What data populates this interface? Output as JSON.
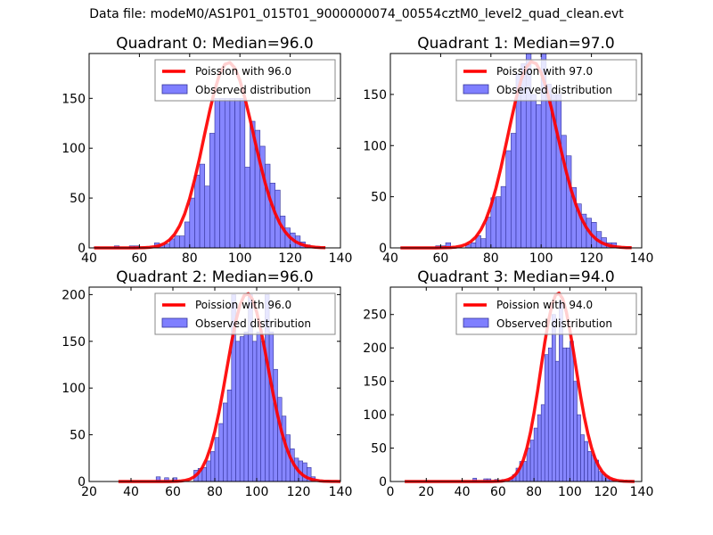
{
  "suptitle": "Data file: modeM0/AS1P01_015T01_9000000074_00554cztM0_level2_quad_clean.evt",
  "colors": {
    "poisson": "#ff0000",
    "hist_fill": "#7f7fff",
    "hist_edge": "#333399"
  },
  "chart_data": [
    {
      "type": "bar",
      "title": "Quadrant 0: Median=96.0",
      "xlim": [
        40,
        140
      ],
      "ylim": [
        0,
        195
      ],
      "xticks": [
        40,
        60,
        80,
        100,
        120,
        140
      ],
      "yticks": [
        0,
        50,
        100,
        150
      ],
      "legend": {
        "placement": "top-right",
        "entries": [
          "Poission with 96.0",
          "Observed distribution"
        ]
      },
      "bin_width": 2,
      "hist": {
        "x": [
          42,
          50,
          56,
          58,
          66,
          68,
          70,
          72,
          74,
          76,
          78,
          80,
          82,
          84,
          86,
          88,
          90,
          92,
          94,
          96,
          98,
          100,
          102,
          104,
          106,
          108,
          110,
          112,
          114,
          116,
          118,
          120,
          122,
          124,
          126,
          128,
          130
        ],
        "y": [
          1,
          2,
          2,
          2,
          5,
          3,
          4,
          9,
          12,
          12,
          26,
          50,
          73,
          84,
          62,
          115,
          150,
          150,
          150,
          150,
          150,
          150,
          81,
          127,
          118,
          102,
          84,
          65,
          58,
          32,
          20,
          15,
          12,
          6,
          3,
          1,
          1
        ]
      },
      "poisson": {
        "mean": 96.0,
        "peak": 186,
        "x_range": [
          42,
          134
        ]
      }
    },
    {
      "type": "bar",
      "title": "Quadrant 1: Median=97.0",
      "xlim": [
        40,
        140
      ],
      "ylim": [
        0,
        190
      ],
      "xticks": [
        40,
        60,
        80,
        100,
        120,
        140
      ],
      "yticks": [
        0,
        50,
        100,
        150
      ],
      "legend": {
        "placement": "top-right",
        "entries": [
          "Poission with 97.0",
          "Observed distribution"
        ]
      },
      "bin_width": 2,
      "hist": {
        "x": [
          58,
          60,
          62,
          70,
          72,
          74,
          76,
          78,
          80,
          82,
          84,
          86,
          88,
          90,
          92,
          94,
          96,
          98,
          100,
          102,
          104,
          106,
          108,
          110,
          112,
          114,
          116,
          118,
          120,
          122,
          124,
          126,
          128
        ],
        "y": [
          2,
          2,
          5,
          3,
          5,
          12,
          9,
          30,
          49,
          50,
          60,
          95,
          112,
          170,
          180,
          190,
          150,
          140,
          190,
          160,
          150,
          150,
          110,
          90,
          59,
          43,
          33,
          29,
          25,
          16,
          10,
          5,
          5
        ]
      },
      "poisson": {
        "mean": 97.0,
        "peak": 182,
        "x_range": [
          44,
          136
        ]
      }
    },
    {
      "type": "bar",
      "title": "Quadrant 2: Median=96.0",
      "xlim": [
        20,
        140
      ],
      "ylim": [
        0,
        208
      ],
      "xticks": [
        20,
        40,
        60,
        80,
        100,
        120,
        140
      ],
      "yticks": [
        0,
        50,
        100,
        150,
        200
      ],
      "legend": {
        "placement": "top-right",
        "entries": [
          "Poission with 96.0",
          "Observed distribution"
        ]
      },
      "bin_width": 2,
      "hist": {
        "x": [
          52,
          56,
          60,
          70,
          72,
          74,
          76,
          78,
          80,
          82,
          84,
          86,
          88,
          90,
          92,
          94,
          96,
          98,
          100,
          102,
          104,
          106,
          108,
          110,
          112,
          114,
          116,
          118,
          120,
          122,
          124,
          126
        ],
        "y": [
          5,
          4,
          4,
          12,
          14,
          15,
          22,
          32,
          47,
          62,
          84,
          98,
          200,
          150,
          155,
          160,
          200,
          150,
          160,
          150,
          200,
          160,
          120,
          90,
          70,
          50,
          35,
          25,
          22,
          20,
          15,
          5
        ]
      },
      "poisson": {
        "mean": 96.0,
        "peak": 201,
        "x_range": [
          34,
          140
        ]
      }
    },
    {
      "type": "bar",
      "title": "Quadrant 3: Median=94.0",
      "xlim": [
        0,
        140
      ],
      "ylim": [
        0,
        291
      ],
      "xticks": [
        0,
        20,
        40,
        60,
        80,
        100,
        120,
        140
      ],
      "yticks": [
        0,
        50,
        100,
        150,
        200,
        250
      ],
      "legend": {
        "placement": "top-right",
        "entries": [
          "Poission with 94.0",
          "Observed distribution"
        ]
      },
      "bin_width": 2,
      "hist": {
        "x": [
          46,
          52,
          54,
          58,
          62,
          66,
          68,
          70,
          72,
          74,
          76,
          78,
          80,
          82,
          84,
          86,
          88,
          90,
          92,
          94,
          96,
          98,
          100,
          102,
          104,
          106,
          108,
          110,
          112,
          114,
          116,
          118,
          120,
          122,
          124
        ],
        "y": [
          5,
          4,
          4,
          3,
          3,
          5,
          10,
          20,
          30,
          30,
          50,
          62,
          80,
          100,
          115,
          190,
          200,
          250,
          180,
          270,
          200,
          200,
          210,
          150,
          100,
          70,
          60,
          45,
          40,
          32,
          15,
          10,
          8,
          4,
          2
        ]
      },
      "poisson": {
        "mean": 94.0,
        "peak": 282,
        "x_range": [
          8,
          136
        ]
      }
    }
  ]
}
